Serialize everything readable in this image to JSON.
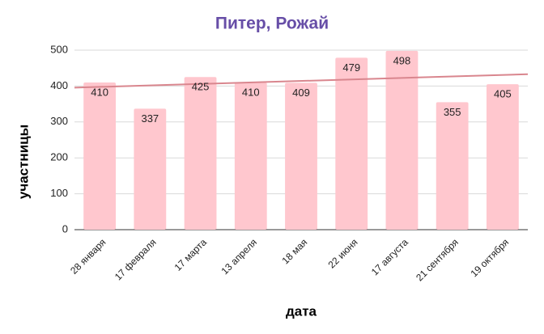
{
  "chart_data": {
    "type": "bar",
    "title": "Питер, Рожай",
    "x_label": "дата",
    "y_label": "участницы",
    "categories": [
      "28 января",
      "17 февраля",
      "17 марта",
      "13 апреля",
      "18 мая",
      "22 июня",
      "17 августа",
      "21 сентября",
      "19 октября"
    ],
    "values": [
      410,
      337,
      425,
      410,
      409,
      479,
      498,
      355,
      405
    ],
    "color": "#ffc7ce",
    "trendline": {
      "type": "linear",
      "color": "#d9868e"
    },
    "ylim": [
      0,
      500
    ],
    "yticks": [
      0,
      100,
      200,
      300,
      400,
      500
    ],
    "grid": true
  }
}
